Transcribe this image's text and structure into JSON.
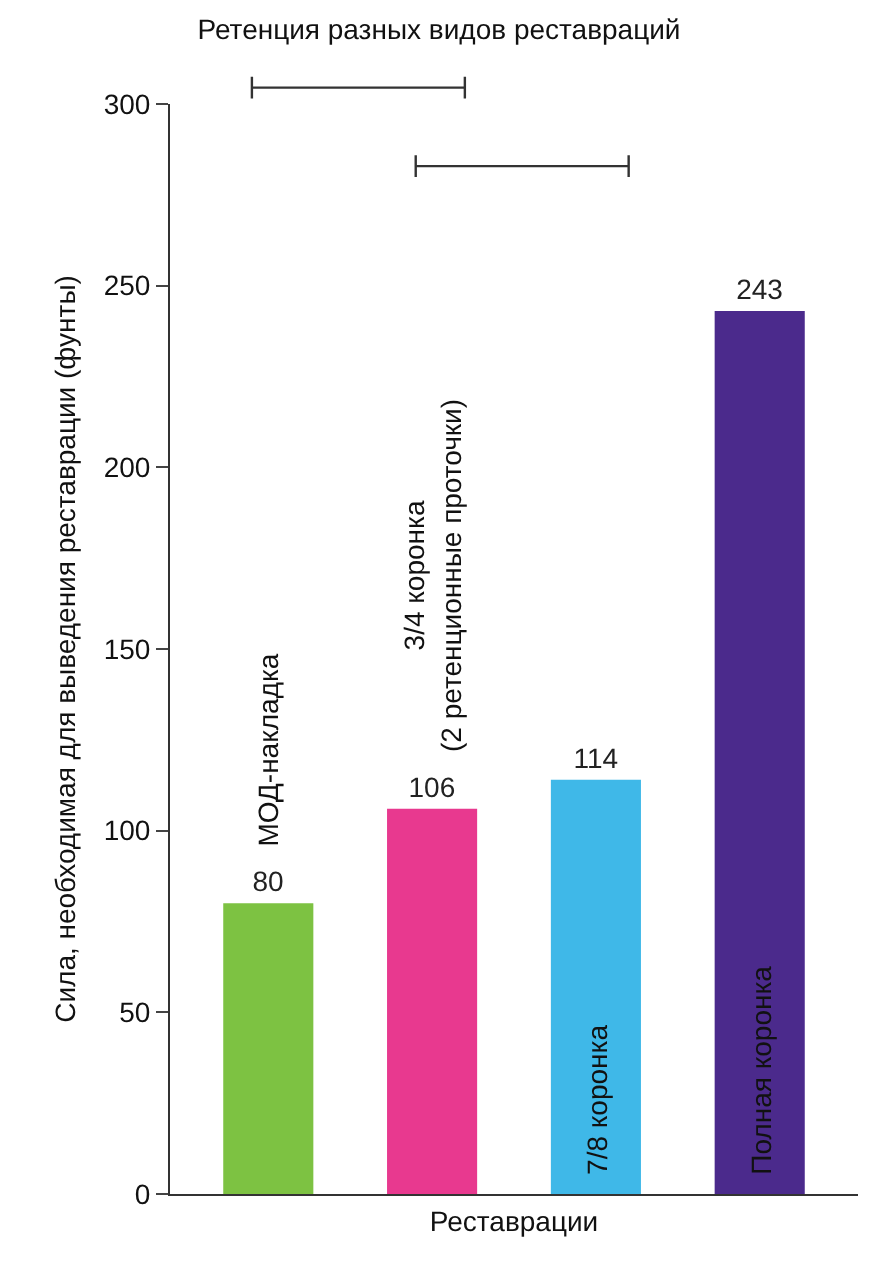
{
  "chart_data": {
    "type": "bar",
    "title": "Ретенция разных видов реставраций",
    "xlabel": "Реставрации",
    "ylabel": "Сила, необходимая для выведения реставрации (фунты)",
    "categories": [
      "МОД-накладка",
      "3/4 коронка\n(2 ретенционные проточки)",
      "7/8 коронка",
      "Полная коронка"
    ],
    "values": [
      80,
      106,
      114,
      243
    ],
    "colors": [
      "#7dc242",
      "#e8398f",
      "#3fb8e8",
      "#4b2a8c"
    ],
    "ylim": [
      0,
      300
    ],
    "yticks": [
      0,
      50,
      100,
      150,
      200,
      250,
      300
    ],
    "grid": false,
    "legend": false,
    "data_labels": true
  }
}
